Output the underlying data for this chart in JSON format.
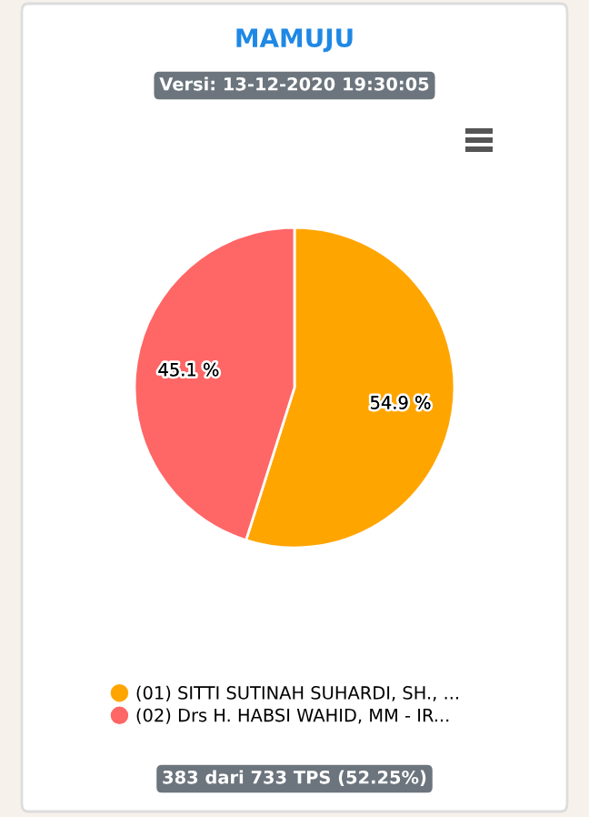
{
  "chart_data": {
    "type": "pie",
    "title": "MAMUJU",
    "subtitle": "Versi: 13-12-2020 19:30:05",
    "categories": [
      "(01) SITTI SUTINAH SUHARDI, SH., ...",
      "(02) Drs H. HABSI WAHID, MM - IR..."
    ],
    "values": [
      54.9,
      45.1
    ],
    "colors": [
      "#ffa500",
      "#ff6666"
    ],
    "value_labels": [
      "54.9 %",
      "45.1 %"
    ],
    "legend": "bottom",
    "annotations": [
      "383 dari 733 TPS (52.25%)"
    ]
  }
}
